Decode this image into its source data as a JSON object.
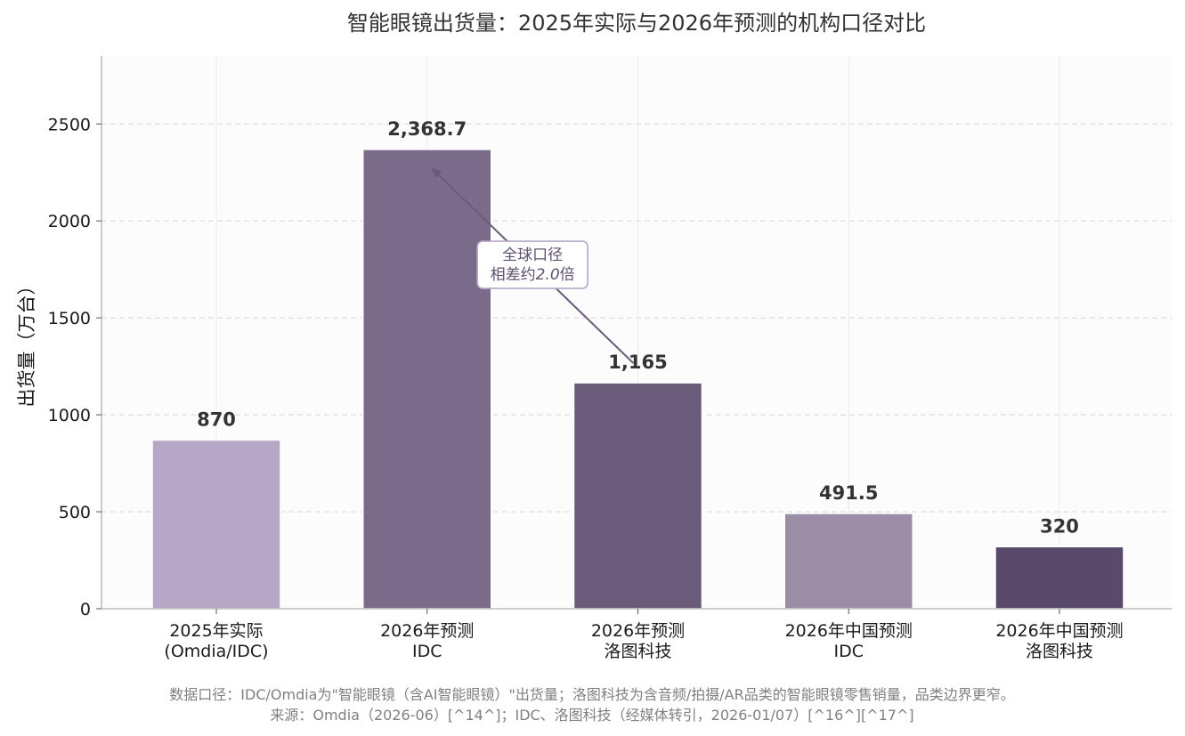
{
  "chart_data": {
    "type": "bar",
    "title": "智能眼镜出货量：2025年实际与2026年预测的机构口径对比",
    "ylabel": "出货量（万台）",
    "xlabel": "",
    "ylim": [
      0,
      2850
    ],
    "yticks": [
      0,
      500,
      1000,
      1500,
      2000,
      2500
    ],
    "grid": "y dashed, x solid light",
    "categories": [
      [
        "2025年实际",
        "(Omdia/IDC)"
      ],
      [
        "2026年预测",
        "IDC"
      ],
      [
        "2026年预测",
        "洛图科技"
      ],
      [
        "2026年中国预测",
        "IDC"
      ],
      [
        "2026年中国预测",
        "洛图科技"
      ]
    ],
    "values": [
      870,
      2368.7,
      1165,
      491.5,
      320
    ],
    "value_labels": [
      "870",
      "2,368.7",
      "1,165",
      "491.5",
      "320"
    ],
    "colors": [
      "#b6a7c7",
      "#7a6b8b",
      "#6b5b7b",
      "#9c8da6",
      "#594a6c"
    ],
    "annotation": {
      "lines": [
        "全球口径",
        "相差约",
        "2.0",
        "倍"
      ],
      "from_category": 2,
      "to_category": 1,
      "color": "#6b5b7b",
      "box_edge_color": "#b6a7c7"
    },
    "footnotes": [
      "数据口径：IDC/Omdia为\"智能眼镜（含AI智能眼镜）\"出货量；洛图科技为含音频/拍摄/AR品类的智能眼镜零售销量，品类边界更窄。",
      "来源：Omdia（2026-06）[^14^]；IDC、洛图科技（经媒体转引，2026-01/07）[^16^][^17^]"
    ]
  }
}
